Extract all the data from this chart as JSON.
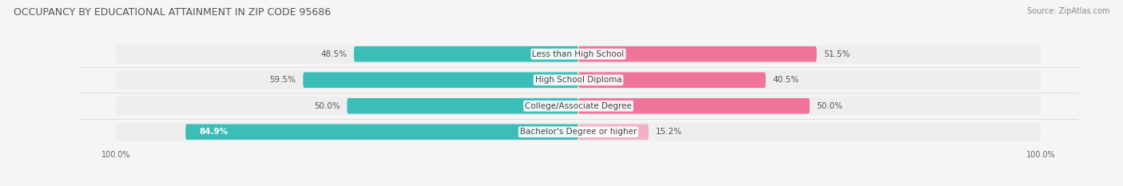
{
  "title": "OCCUPANCY BY EDUCATIONAL ATTAINMENT IN ZIP CODE 95686",
  "source": "Source: ZipAtlas.com",
  "categories": [
    "Less than High School",
    "High School Diploma",
    "College/Associate Degree",
    "Bachelor's Degree or higher"
  ],
  "owner_values": [
    48.5,
    59.5,
    50.0,
    84.9
  ],
  "renter_values": [
    51.5,
    40.5,
    50.0,
    15.2
  ],
  "owner_color": "#3bbdb8",
  "renter_color": "#f0739a",
  "renter_color_light": "#f4afc8",
  "bg_row_color": "#e8e8e8",
  "background_color": "#f5f5f5",
  "bar_background_color": "#eeeeee",
  "title_fontsize": 9,
  "label_fontsize": 7.5,
  "value_fontsize": 7.5,
  "tick_fontsize": 7,
  "source_fontsize": 7,
  "legend_fontsize": 7.5
}
